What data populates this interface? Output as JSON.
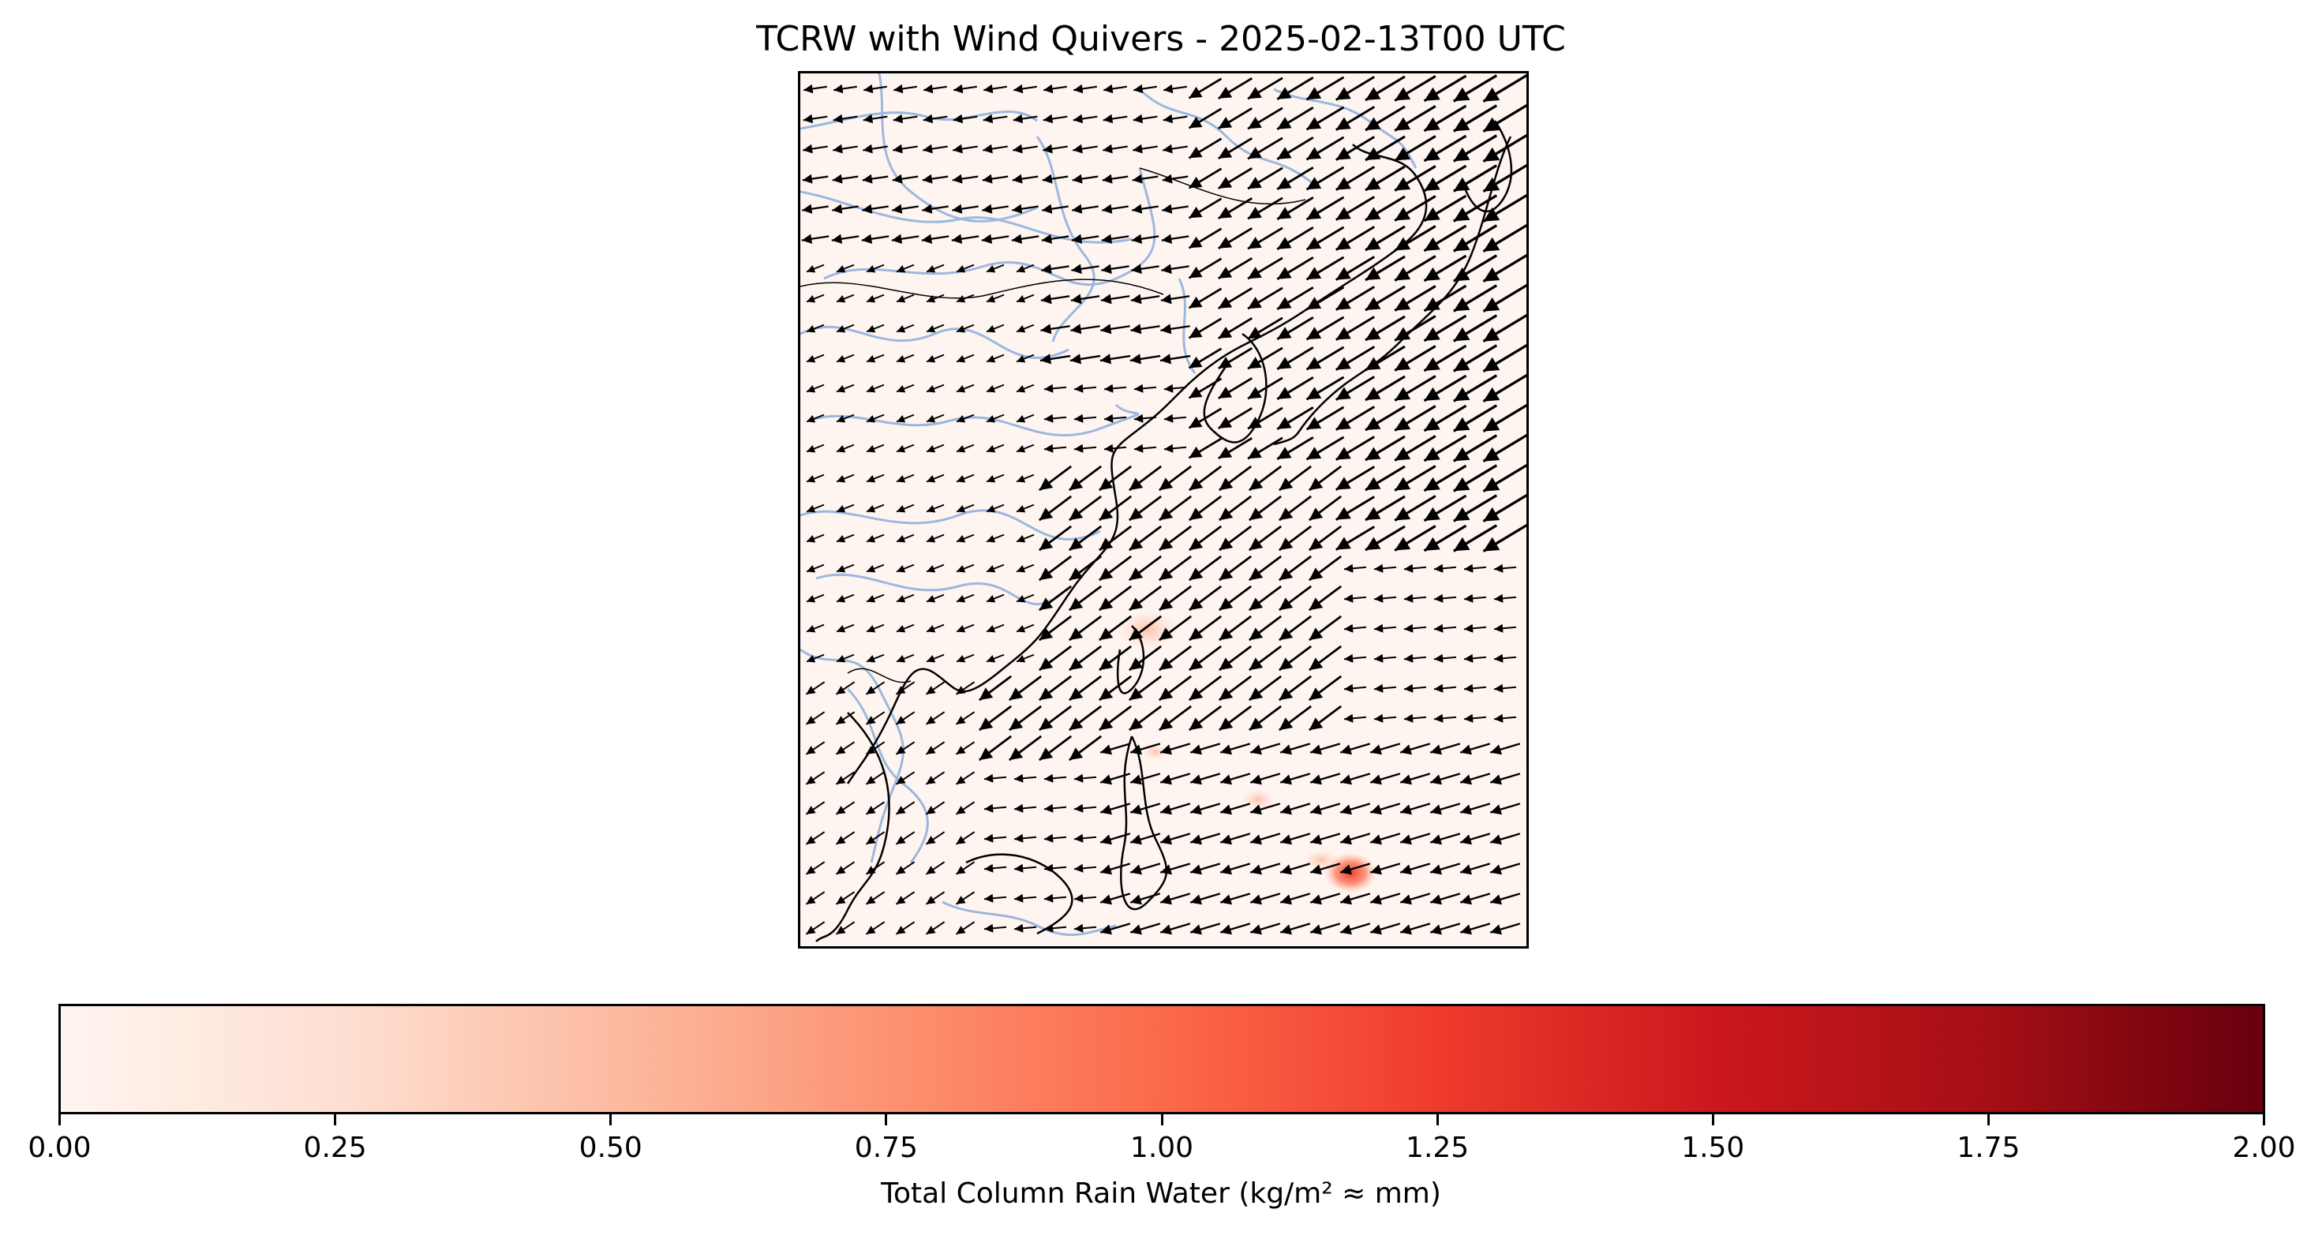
{
  "title": "TCRW with Wind Quivers - 2025-02-13T00 UTC",
  "colorbar": {
    "label": "Total Column Rain Water (kg/m² ≈ mm)",
    "min": 0.0,
    "max": 2.0,
    "ticks": [
      "0.00",
      "0.25",
      "0.50",
      "0.75",
      "1.00",
      "1.25",
      "1.50",
      "1.75",
      "2.00"
    ],
    "colormap": "Reds",
    "colors": [
      "#fff5f0",
      "#fee0d2",
      "#fcbba1",
      "#fc9272",
      "#fb6a4a",
      "#ef3b2c",
      "#cb181d",
      "#a50f15",
      "#67000d"
    ]
  },
  "map": {
    "background_color": "#fff5f0",
    "coastline_color": "#000000",
    "river_color": "#9ab8e0",
    "quiver_color": "#000000"
  }
}
